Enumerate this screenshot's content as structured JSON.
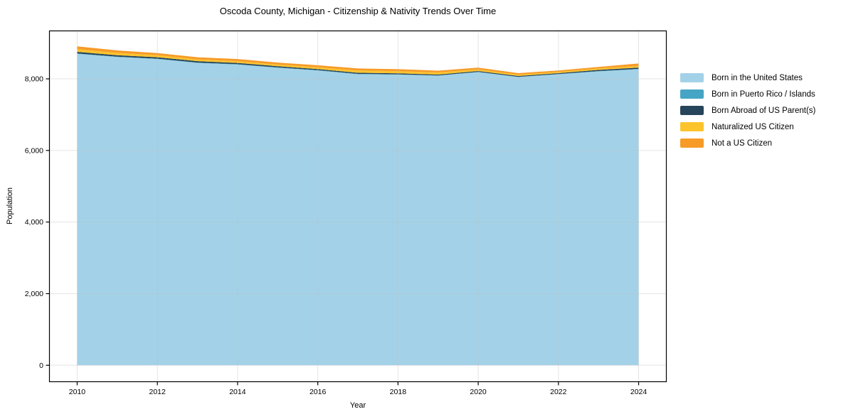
{
  "chart_data": {
    "type": "area",
    "stacked": true,
    "title": "Oscoda County, Michigan - Citizenship & Nativity Trends Over Time",
    "xlabel": "Year",
    "ylabel": "Population",
    "x": [
      2010,
      2011,
      2012,
      2013,
      2014,
      2015,
      2016,
      2017,
      2018,
      2019,
      2020,
      2021,
      2022,
      2023,
      2024
    ],
    "series": [
      {
        "name": "Born in the United States",
        "color": "#a3d2e8",
        "values": [
          8700,
          8610,
          8555,
          8445,
          8400,
          8310,
          8235,
          8130,
          8120,
          8090,
          8190,
          8050,
          8130,
          8210,
          8270
        ]
      },
      {
        "name": "Born in Puerto Rico / Islands",
        "color": "#46a5c4",
        "values": [
          10,
          10,
          10,
          10,
          10,
          10,
          10,
          10,
          5,
          5,
          5,
          5,
          5,
          10,
          10
        ]
      },
      {
        "name": "Born Abroad of US Parent(s)",
        "color": "#27455a",
        "values": [
          45,
          40,
          40,
          40,
          35,
          35,
          30,
          30,
          30,
          25,
          25,
          25,
          25,
          30,
          35
        ]
      },
      {
        "name": "Naturalized US Citizen",
        "color": "#fcc32d",
        "values": [
          75,
          65,
          55,
          50,
          50,
          45,
          50,
          65,
          60,
          60,
          45,
          35,
          35,
          40,
          50
        ]
      },
      {
        "name": "Not a US Citizen",
        "color": "#f79b28",
        "values": [
          80,
          70,
          60,
          60,
          60,
          55,
          55,
          55,
          55,
          50,
          50,
          45,
          40,
          45,
          65
        ]
      }
    ],
    "xticks": [
      2010,
      2012,
      2014,
      2016,
      2018,
      2020,
      2022,
      2024
    ],
    "xtick_labels": [
      "2010",
      "2012",
      "2014",
      "2016",
      "2018",
      "2020",
      "2022",
      "2024"
    ],
    "yticks": [
      0,
      2000,
      4000,
      6000,
      8000
    ],
    "ytick_labels": [
      "0",
      "2,000",
      "4,000",
      "6,000",
      "8,000"
    ],
    "xlim": [
      2009.3,
      2024.7
    ],
    "ylim": [
      -470,
      9350
    ],
    "grid": true,
    "grid_color": "#bfbfbf",
    "axis_color": "#000000",
    "legend_position": "right"
  }
}
